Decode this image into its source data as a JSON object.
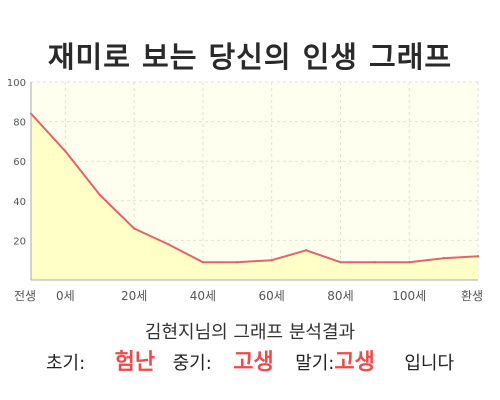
{
  "title": "재미로 보는 당신의 인생 그래프",
  "subtitle": "김현지님의 그래프 분석결과",
  "summary": {
    "early_label": "초기:",
    "early_value": "험난",
    "mid_label": "중기:",
    "mid_value": "고생",
    "late_label": "말기:",
    "late_value": "고생",
    "suffix": "입니다"
  },
  "colors": {
    "line": "#e06666",
    "fill": "#ffffc8",
    "plot_bg": "#fffff0",
    "highlight": "#ee4a4a"
  },
  "chart_data": {
    "type": "area",
    "title": "재미로 보는 당신의 인생 그래프",
    "xlabel": "",
    "ylabel": "",
    "x_ticks": [
      "전생",
      "0세",
      "20세",
      "40세",
      "60세",
      "80세",
      "100세",
      "환생"
    ],
    "y_ticks": [
      20,
      40,
      60,
      80,
      100
    ],
    "ylim": [
      0,
      100
    ],
    "grid": true,
    "series": [
      {
        "x": [
          "전생",
          "0세",
          "10세",
          "20세",
          "30세",
          "40세",
          "50세",
          "60세",
          "70세",
          "80세",
          "90세",
          "100세",
          "110세",
          "환생"
        ],
        "values": [
          84,
          65,
          43,
          26,
          18,
          9,
          9,
          10,
          15,
          9,
          9,
          9,
          11,
          12
        ]
      }
    ]
  }
}
